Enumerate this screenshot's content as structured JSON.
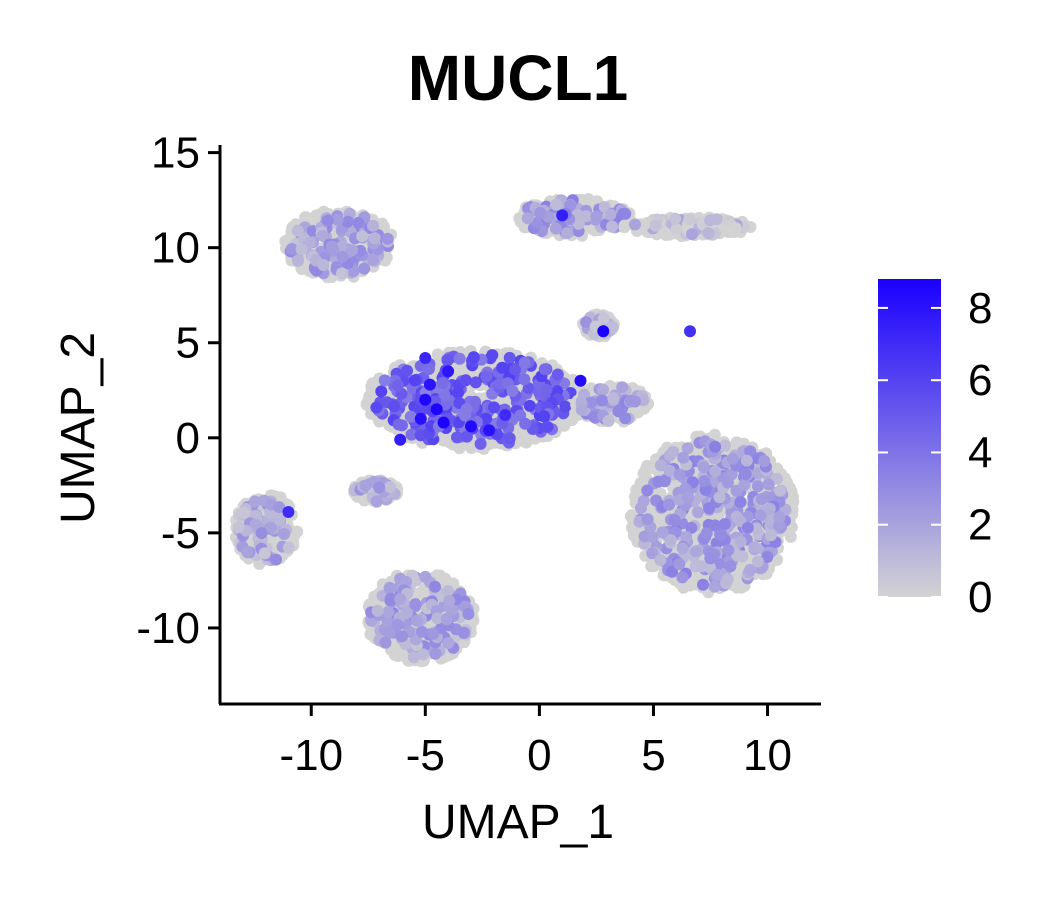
{
  "chart_data": {
    "type": "scatter",
    "title": "MUCL1",
    "xlabel": "UMAP_1",
    "ylabel": "UMAP_2",
    "xlim": [
      -14,
      12.3
    ],
    "ylim": [
      -14,
      15.4
    ],
    "xticks": [
      -10,
      -5,
      0,
      5,
      10
    ],
    "xtick_labels": [
      "-10",
      "-5",
      "0",
      "5",
      "10"
    ],
    "yticks": [
      -10,
      -5,
      0,
      5,
      10,
      15
    ],
    "ytick_labels": [
      "-10",
      "-5",
      "0",
      "5",
      "10",
      "15"
    ],
    "grid": false,
    "legend": {
      "type": "colorbar",
      "placement": "right",
      "min": 0,
      "max": 8.8,
      "ticks": [
        0,
        2,
        4,
        6,
        8
      ],
      "tick_labels": [
        "0",
        "2",
        "4",
        "6",
        "8"
      ],
      "low_color": "#d3d3d3",
      "high_color": "#1a00ff"
    },
    "clusters": [
      {
        "cx": -8.8,
        "cy": 10.2,
        "rx": 2.4,
        "ry": 1.8,
        "mean_expr": 2.0
      },
      {
        "cx": 1.5,
        "cy": 11.6,
        "rx": 2.6,
        "ry": 1.0,
        "mean_expr": 2.3
      },
      {
        "cx": 6.5,
        "cy": 11.1,
        "rx": 2.8,
        "ry": 0.5,
        "mean_expr": 0.8
      },
      {
        "cx": -2.8,
        "cy": 2.0,
        "rx": 4.8,
        "ry": 2.6,
        "mean_expr": 4.8
      },
      {
        "cx": 2.6,
        "cy": 5.9,
        "rx": 0.7,
        "ry": 0.6,
        "mean_expr": 1.5
      },
      {
        "cx": 3.2,
        "cy": 1.8,
        "rx": 1.6,
        "ry": 1.0,
        "mean_expr": 2.0
      },
      {
        "cx": 7.6,
        "cy": -4.0,
        "rx": 3.6,
        "ry": 4.2,
        "mean_expr": 2.2
      },
      {
        "cx": -12.0,
        "cy": -4.8,
        "rx": 1.4,
        "ry": 1.9,
        "mean_expr": 1.7
      },
      {
        "cx": -7.2,
        "cy": -2.8,
        "rx": 1.0,
        "ry": 0.6,
        "mean_expr": 1.8
      },
      {
        "cx": -5.2,
        "cy": -9.4,
        "rx": 2.4,
        "ry": 2.4,
        "mean_expr": 1.9
      }
    ],
    "high_points": [
      {
        "x": -5.0,
        "y": 2.0,
        "value": 8.5
      },
      {
        "x": -4.5,
        "y": 1.5,
        "value": 8.6
      },
      {
        "x": -4.8,
        "y": 2.8,
        "value": 8.0
      },
      {
        "x": -5.2,
        "y": 1.0,
        "value": 8.2
      },
      {
        "x": -4.0,
        "y": 3.5,
        "value": 7.9
      },
      {
        "x": -3.0,
        "y": 0.6,
        "value": 8.4
      },
      {
        "x": -2.2,
        "y": 0.4,
        "value": 8.1
      },
      {
        "x": -4.2,
        "y": 0.8,
        "value": 8.7
      },
      {
        "x": 1.0,
        "y": 11.7,
        "value": 7.5
      },
      {
        "x": 2.8,
        "y": 5.6,
        "value": 8.8
      },
      {
        "x": 1.8,
        "y": 3.0,
        "value": 8.3
      },
      {
        "x": -11.0,
        "y": -3.9,
        "value": 7.0
      },
      {
        "x": -5.0,
        "y": 4.2,
        "value": 7.2
      },
      {
        "x": -1.5,
        "y": 1.2,
        "value": 7.0
      },
      {
        "x": -6.1,
        "y": -0.1,
        "value": 7.6
      },
      {
        "x": 6.6,
        "y": 5.6,
        "value": 6.8
      }
    ]
  }
}
